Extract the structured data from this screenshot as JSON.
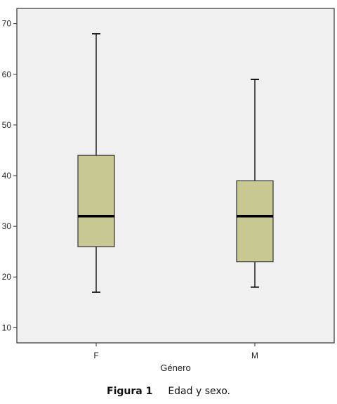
{
  "chart_data": {
    "type": "boxplot",
    "xlabel": "Género",
    "ylabel": "",
    "ylim": [
      7,
      73
    ],
    "yticks": [
      10,
      20,
      30,
      40,
      50,
      60,
      70
    ],
    "grid": false,
    "categories": [
      "F",
      "M"
    ],
    "boxes": [
      {
        "category": "F",
        "min": 17,
        "q1": 26,
        "median": 32,
        "q3": 44,
        "max": 68
      },
      {
        "category": "M",
        "min": 18,
        "q1": 23,
        "median": 32,
        "q3": 39,
        "max": 59
      }
    ],
    "colors": {
      "box_fill": "#c8c893",
      "plot_bg": "#f0f0f0",
      "line": "#000000"
    }
  },
  "caption": {
    "figure_label": "Figura 1",
    "text": "Edad y sexo."
  }
}
